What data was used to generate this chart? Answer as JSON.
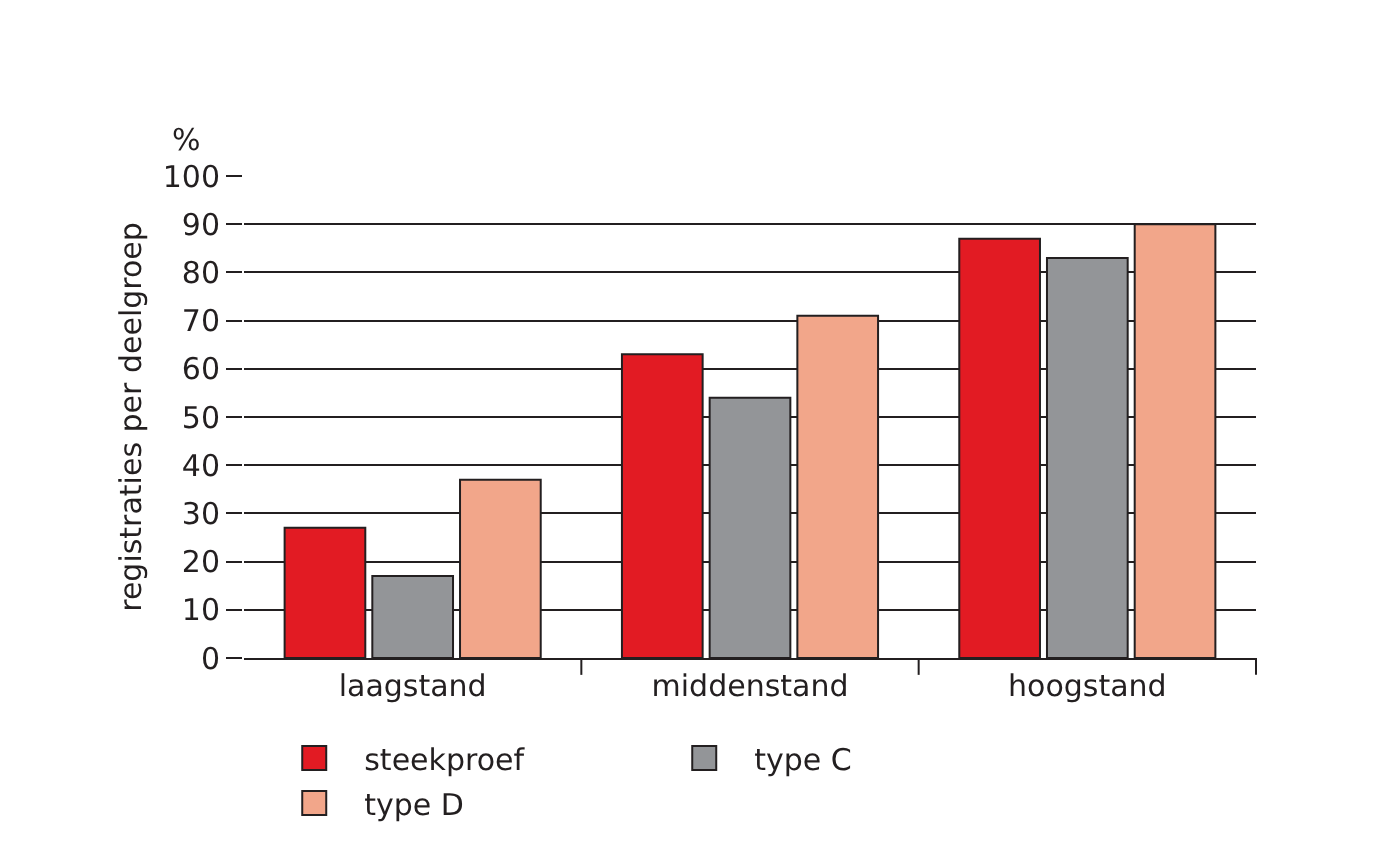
{
  "chart_data": {
    "type": "bar",
    "ylabel": "registraties per deelgroep",
    "annotations": [
      "%"
    ],
    "categories": [
      "laagstand",
      "middenstand",
      "hoogstand"
    ],
    "series": [
      {
        "name": "steekproef",
        "color": "#e21b23",
        "values": [
          27,
          63,
          87
        ]
      },
      {
        "name": "type C",
        "color": "#939598",
        "values": [
          17,
          54,
          83
        ]
      },
      {
        "name": "type D",
        "color": "#f2a68a",
        "values": [
          37,
          71,
          90
        ]
      }
    ],
    "ylim": [
      0,
      100
    ],
    "yticks": [
      0,
      10,
      20,
      30,
      40,
      50,
      60,
      70,
      80,
      90,
      100
    ],
    "grid": "y",
    "legend": "bottom"
  }
}
